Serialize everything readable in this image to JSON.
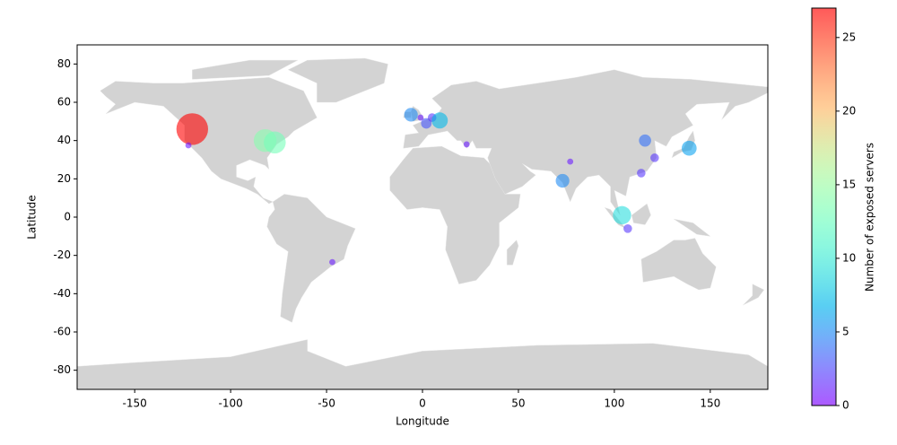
{
  "chart_data": {
    "type": "scatter",
    "x_label": "Longitude",
    "y_label": "Latitude",
    "xlim": [
      -180,
      180
    ],
    "ylim": [
      -90,
      90
    ],
    "xticks": [
      -150,
      -100,
      -50,
      0,
      50,
      100,
      150
    ],
    "yticks": [
      -80,
      -60,
      -40,
      -20,
      0,
      20,
      40,
      60,
      80
    ],
    "colormap": "rainbow",
    "colorbar": {
      "label": "Number of exposed servers",
      "lim": [
        0,
        27
      ],
      "ticks": [
        0,
        5,
        10,
        15,
        20,
        25
      ]
    },
    "series": [
      {
        "x": [
          -120,
          -122,
          -82,
          -77,
          -6,
          -1,
          2,
          5,
          9,
          23,
          116,
          121,
          114,
          139,
          73,
          77,
          104,
          107,
          -47
        ],
        "y": [
          46,
          37.5,
          40,
          39,
          53.5,
          52,
          49,
          52,
          50.5,
          38,
          40,
          31,
          23,
          36,
          19,
          29,
          1,
          -6,
          -23.5
        ],
        "values": [
          27,
          1,
          14,
          13,
          5,
          1,
          3,
          2,
          7,
          1,
          4,
          2,
          2,
          6,
          5,
          1,
          9,
          2,
          1
        ]
      }
    ]
  }
}
